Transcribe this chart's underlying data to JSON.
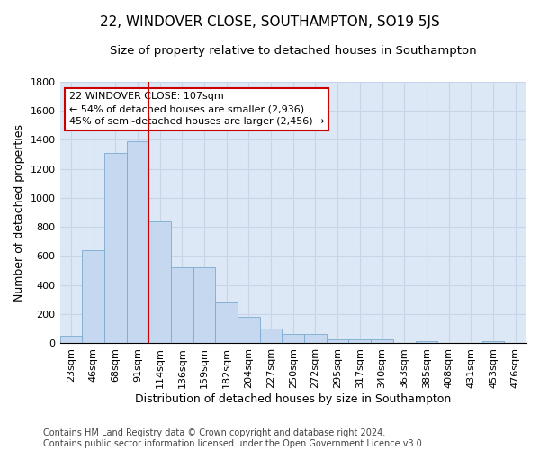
{
  "title": "22, WINDOVER CLOSE, SOUTHAMPTON, SO19 5JS",
  "subtitle": "Size of property relative to detached houses in Southampton",
  "xlabel": "Distribution of detached houses by size in Southampton",
  "ylabel": "Number of detached properties",
  "bin_labels": [
    "23sqm",
    "46sqm",
    "68sqm",
    "91sqm",
    "114sqm",
    "136sqm",
    "159sqm",
    "182sqm",
    "204sqm",
    "227sqm",
    "250sqm",
    "272sqm",
    "295sqm",
    "317sqm",
    "340sqm",
    "363sqm",
    "385sqm",
    "408sqm",
    "431sqm",
    "453sqm",
    "476sqm"
  ],
  "bar_heights": [
    50,
    640,
    1310,
    1390,
    840,
    525,
    525,
    280,
    180,
    100,
    65,
    65,
    30,
    30,
    30,
    0,
    15,
    0,
    0,
    15,
    0
  ],
  "bar_color": "#c5d8f0",
  "bar_edge_color": "#7aabcf",
  "vline_color": "#cc0000",
  "annotation_text": "22 WINDOVER CLOSE: 107sqm\n← 54% of detached houses are smaller (2,936)\n45% of semi-detached houses are larger (2,456) →",
  "annotation_box_color": "#ffffff",
  "annotation_box_edge": "#cc0000",
  "ylim": [
    0,
    1800
  ],
  "yticks": [
    0,
    200,
    400,
    600,
    800,
    1000,
    1200,
    1400,
    1600,
    1800
  ],
  "grid_color": "#c8d4e8",
  "background_color": "#dce8f5",
  "footer": "Contains HM Land Registry data © Crown copyright and database right 2024.\nContains public sector information licensed under the Open Government Licence v3.0.",
  "title_fontsize": 11,
  "subtitle_fontsize": 9.5,
  "axis_label_fontsize": 9,
  "tick_fontsize": 8,
  "footer_fontsize": 7
}
